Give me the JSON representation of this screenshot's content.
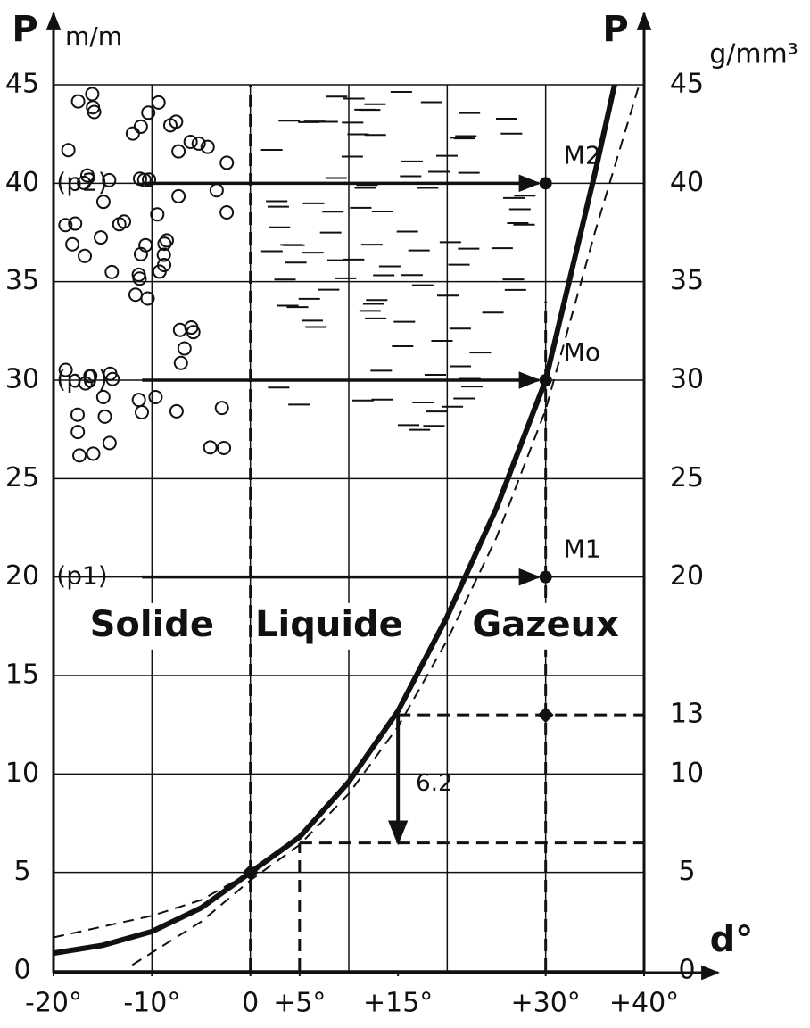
{
  "chart_data": {
    "type": "line",
    "ylabel": "P",
    "ylabel_unit": "m/m",
    "y2label": "P",
    "y2label_unit": "g/mm³",
    "xlabel": "d°",
    "xlim": [
      -20,
      40
    ],
    "xticks": [
      {
        "value": -20,
        "label": "-20°"
      },
      {
        "value": -10,
        "label": "-10°"
      },
      0,
      {
        "value": 5,
        "label": "+5°"
      },
      {
        "value": 15,
        "label": "+15°"
      },
      {
        "value": 30,
        "label": "+30°"
      },
      {
        "value": 40,
        "label": "+40°"
      }
    ],
    "xgrid": [
      -10,
      0,
      10,
      20,
      30
    ],
    "ylim": [
      0,
      45
    ],
    "yticks": [
      0,
      5,
      10,
      15,
      20,
      25,
      30,
      35,
      40,
      45
    ],
    "y2lim": [
      0,
      45
    ],
    "y2ticks": [
      0,
      5,
      10,
      13,
      20,
      25,
      30,
      35,
      40,
      45
    ],
    "grid": true,
    "series": [
      {
        "color": "#111111",
        "style": "solid",
        "x": [
          -20,
          -15,
          -10,
          -5,
          0,
          5,
          10,
          15,
          20,
          25,
          30,
          35,
          37
        ],
        "values": [
          0.9,
          1.3,
          2,
          3.2,
          5,
          6.8,
          9.6,
          13.2,
          18,
          23.5,
          30,
          40.5,
          45
        ]
      },
      {
        "color": "#111111",
        "style": "dashed",
        "x": [
          -20,
          -10,
          -5,
          0
        ],
        "values": [
          1.7,
          2.8,
          3.6,
          5
        ]
      },
      {
        "color": "#111111",
        "style": "dashed",
        "x": [
          -12,
          -5,
          0,
          5,
          10,
          15,
          20,
          25,
          30,
          35,
          39.5
        ],
        "values": [
          0.3,
          2.5,
          4.6,
          6.4,
          9,
          12.4,
          16.8,
          22,
          28.5,
          37.5,
          45
        ]
      }
    ],
    "pressure_arrows": [
      {
        "label": "(p2)",
        "y": 40,
        "x": [
          -11,
          30
        ]
      },
      {
        "label": "(p0)",
        "y": 30,
        "x": [
          -11,
          30
        ]
      },
      {
        "label": "(p1)",
        "y": 20,
        "x": [
          -11,
          30
        ]
      }
    ],
    "points": [
      {
        "label": "M2",
        "x": 30,
        "y": 40
      },
      {
        "label": "Mo",
        "x": 30,
        "y": 30
      },
      {
        "label": "M1",
        "x": 30,
        "y": 20
      }
    ],
    "markers": [
      {
        "x": 30,
        "y": 13
      },
      {
        "x": 0,
        "y": 5
      }
    ],
    "guides": [
      {
        "x": [
          0,
          0
        ],
        "y": [
          0,
          45
        ]
      },
      {
        "x": [
          30,
          30
        ],
        "y": [
          0,
          34
        ]
      },
      {
        "x": [
          5,
          5
        ],
        "y": [
          0,
          6.5
        ]
      },
      {
        "x": [
          5,
          40
        ],
        "y": [
          6.5,
          6.5
        ]
      },
      {
        "x": [
          15,
          40
        ],
        "y": [
          13,
          13
        ]
      }
    ],
    "drop_arrow": {
      "x": 15,
      "y": [
        13,
        6.5
      ],
      "label": "6.2"
    },
    "regions": [
      {
        "label": "Solide",
        "x": -10,
        "y": 17.5
      },
      {
        "label": "Liquide",
        "x": 8,
        "y": 17.5
      },
      {
        "label": "Gazeux",
        "x": 30,
        "y": 17.5
      }
    ]
  }
}
